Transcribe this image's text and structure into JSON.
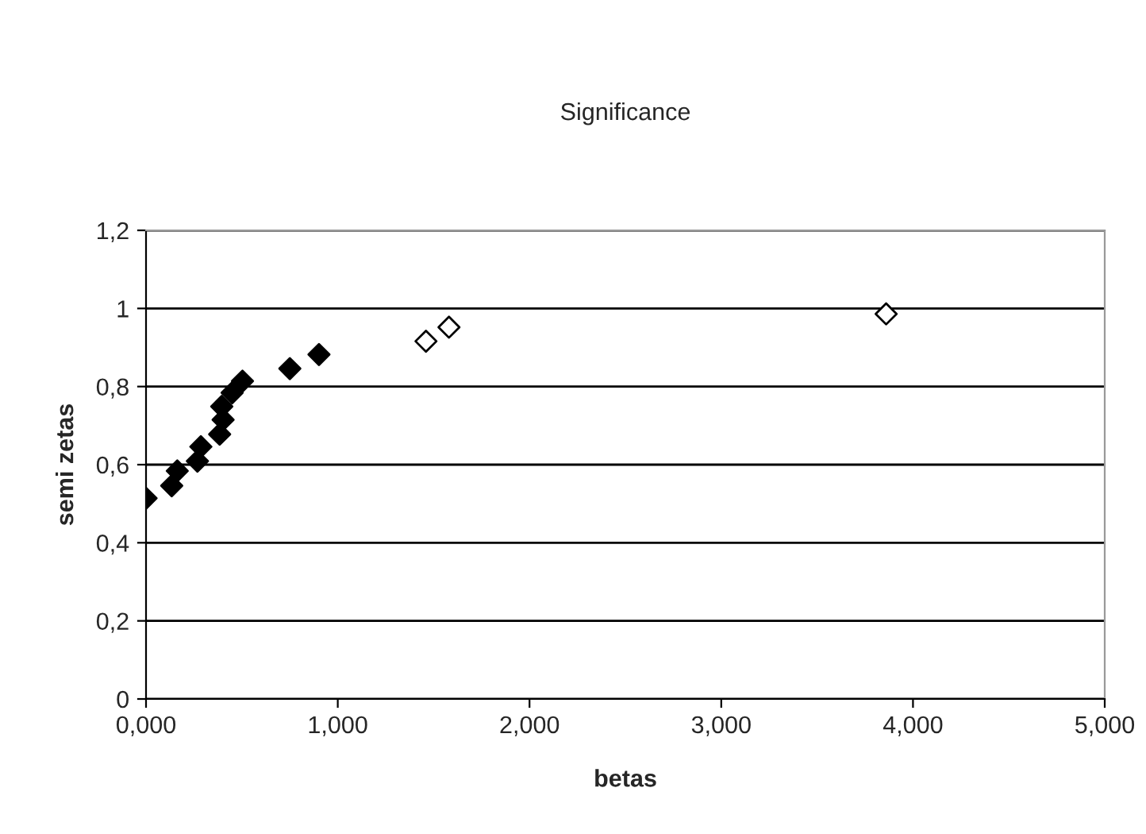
{
  "chart_data": {
    "type": "scatter",
    "title": "Significance",
    "xlabel": "betas",
    "ylabel": "semi zetas",
    "series": [
      {
        "color": "#000000",
        "x": [
          0,
          0.134,
          0.163,
          0.268,
          0.286,
          0.384,
          0.402,
          0.395,
          0.449,
          0.503,
          0.75,
          0.902
        ],
        "values": [
          0.514,
          0.546,
          0.584,
          0.609,
          0.646,
          0.678,
          0.715,
          0.749,
          0.784,
          0.814,
          0.846,
          0.882
        ]
      },
      {
        "color": "#ffffff",
        "x": [
          1.46,
          1.58,
          3.86
        ],
        "values": [
          0.916,
          0.952,
          0.986
        ]
      }
    ],
    "marker": "diamond",
    "grid": "y",
    "legend": false,
    "xlim": [
      0,
      5
    ],
    "xticks": [
      {
        "value": 0,
        "label": "0,000"
      },
      {
        "value": 1,
        "label": "1,000"
      },
      {
        "value": 2,
        "label": "2,000"
      },
      {
        "value": 3,
        "label": "3,000"
      },
      {
        "value": 4,
        "label": "4,000"
      },
      {
        "value": 5,
        "label": "5,000"
      }
    ],
    "ylim": [
      0,
      1.2
    ],
    "yticks": [
      0,
      {
        "value": 0.2,
        "label": "0,2"
      },
      {
        "value": 0.4,
        "label": "0,4"
      },
      {
        "value": 0.6,
        "label": "0,6"
      },
      {
        "value": 0.8,
        "label": "0,8"
      },
      1,
      {
        "value": 1.2,
        "label": "1,2"
      }
    ]
  }
}
